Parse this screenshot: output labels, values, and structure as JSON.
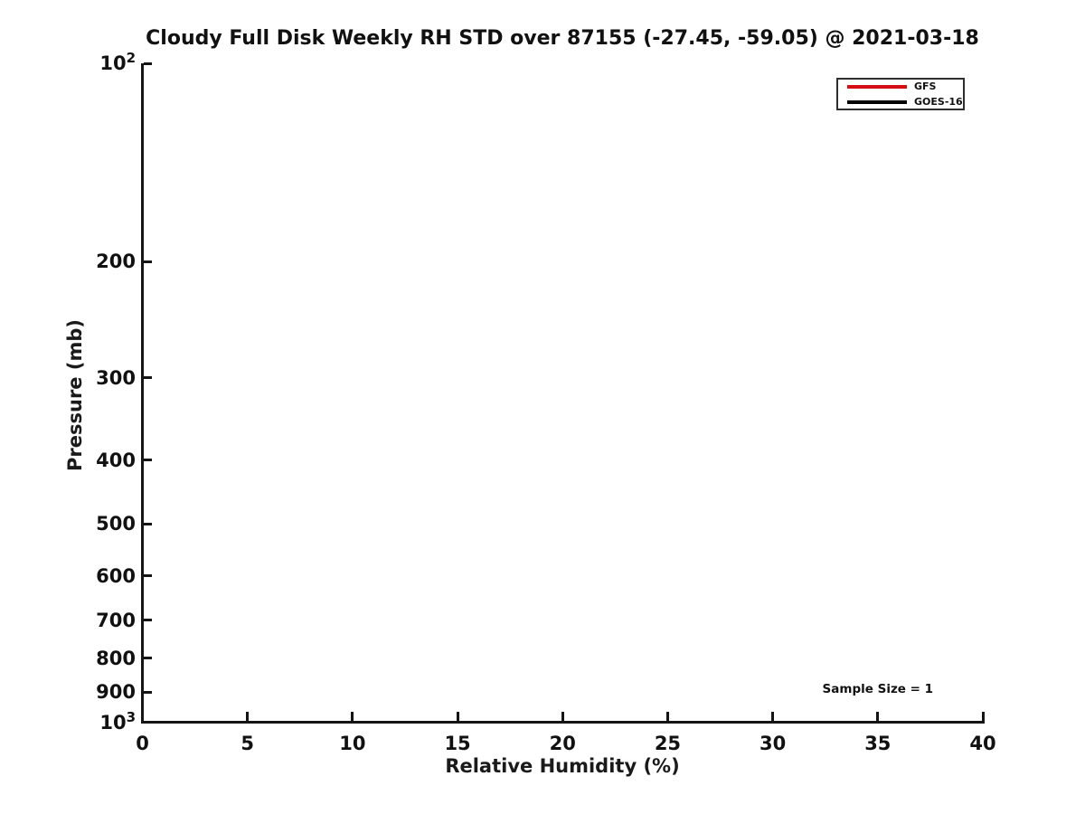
{
  "figure": {
    "background": "#ffffff"
  },
  "chart_data": {
    "type": "line",
    "title": "Cloudy Full Disk Weekly RH STD over 87155 (-27.45, -59.05) @ 2021-03-18",
    "xlabel": "Relative Humidity (%)",
    "ylabel": "Pressure (mb)",
    "xlim": [
      0,
      40
    ],
    "x_ticks": [
      0,
      5,
      10,
      15,
      20,
      25,
      30,
      35,
      40
    ],
    "y_scale": "log",
    "y_inverted": true,
    "ylim_top": 100,
    "ylim_bottom": 1000,
    "y_ticks": [
      {
        "v": 100,
        "label": "10^2"
      },
      {
        "v": 200,
        "label": "200"
      },
      {
        "v": 300,
        "label": "300"
      },
      {
        "v": 400,
        "label": "400"
      },
      {
        "v": 500,
        "label": "500"
      },
      {
        "v": 600,
        "label": "600"
      },
      {
        "v": 700,
        "label": "700"
      },
      {
        "v": 800,
        "label": "800"
      },
      {
        "v": 900,
        "label": "900"
      },
      {
        "v": 1000,
        "label": "10^3"
      }
    ],
    "grid": false,
    "axis_color": "#151515",
    "series": [
      {
        "name": "GFS",
        "color": "#d40f14",
        "x": [],
        "y": []
      },
      {
        "name": "GOES-16",
        "color": "#000000",
        "x": [],
        "y": []
      }
    ],
    "legend": {
      "position": "upper right",
      "entries": [
        {
          "label": "GFS",
          "color": "#d40f14"
        },
        {
          "label": "GOES-16",
          "color": "#000000"
        }
      ]
    },
    "annotations": [
      {
        "text": "Sample Size = 1",
        "x": 35,
        "y": 900
      }
    ]
  }
}
